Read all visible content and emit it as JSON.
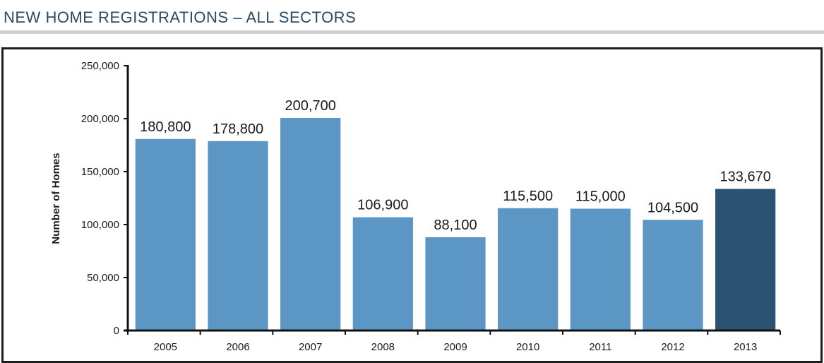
{
  "page": {
    "title": "NEW HOME REGISTRATIONS – ALL SECTORS"
  },
  "chart_data": {
    "type": "bar",
    "title": "NEW HOME REGISTRATIONS – ALL SECTORS",
    "xlabel": "",
    "ylabel": "Number of Homes",
    "ylim": [
      0,
      250000
    ],
    "yticks": [
      0,
      50000,
      100000,
      150000,
      200000,
      250000
    ],
    "ytick_labels": [
      "0",
      "50,000",
      "100,000",
      "150,000",
      "200,000",
      "250,000"
    ],
    "categories": [
      "2005",
      "2006",
      "2007",
      "2008",
      "2009",
      "2010",
      "2011",
      "2012",
      "2013"
    ],
    "values": [
      180800,
      178800,
      200700,
      106900,
      88100,
      115500,
      115000,
      104500,
      133670
    ],
    "value_labels": [
      "180,800",
      "178,800",
      "200,700",
      "106,900",
      "88,100",
      "115,500",
      "115,000",
      "104,500",
      "133,670"
    ],
    "bar_colors": [
      "#5b96c4",
      "#5b96c4",
      "#5b96c4",
      "#5b96c4",
      "#5b96c4",
      "#5b96c4",
      "#5b96c4",
      "#5b96c4",
      "#2c5273"
    ],
    "grid": false,
    "legend": "none"
  }
}
